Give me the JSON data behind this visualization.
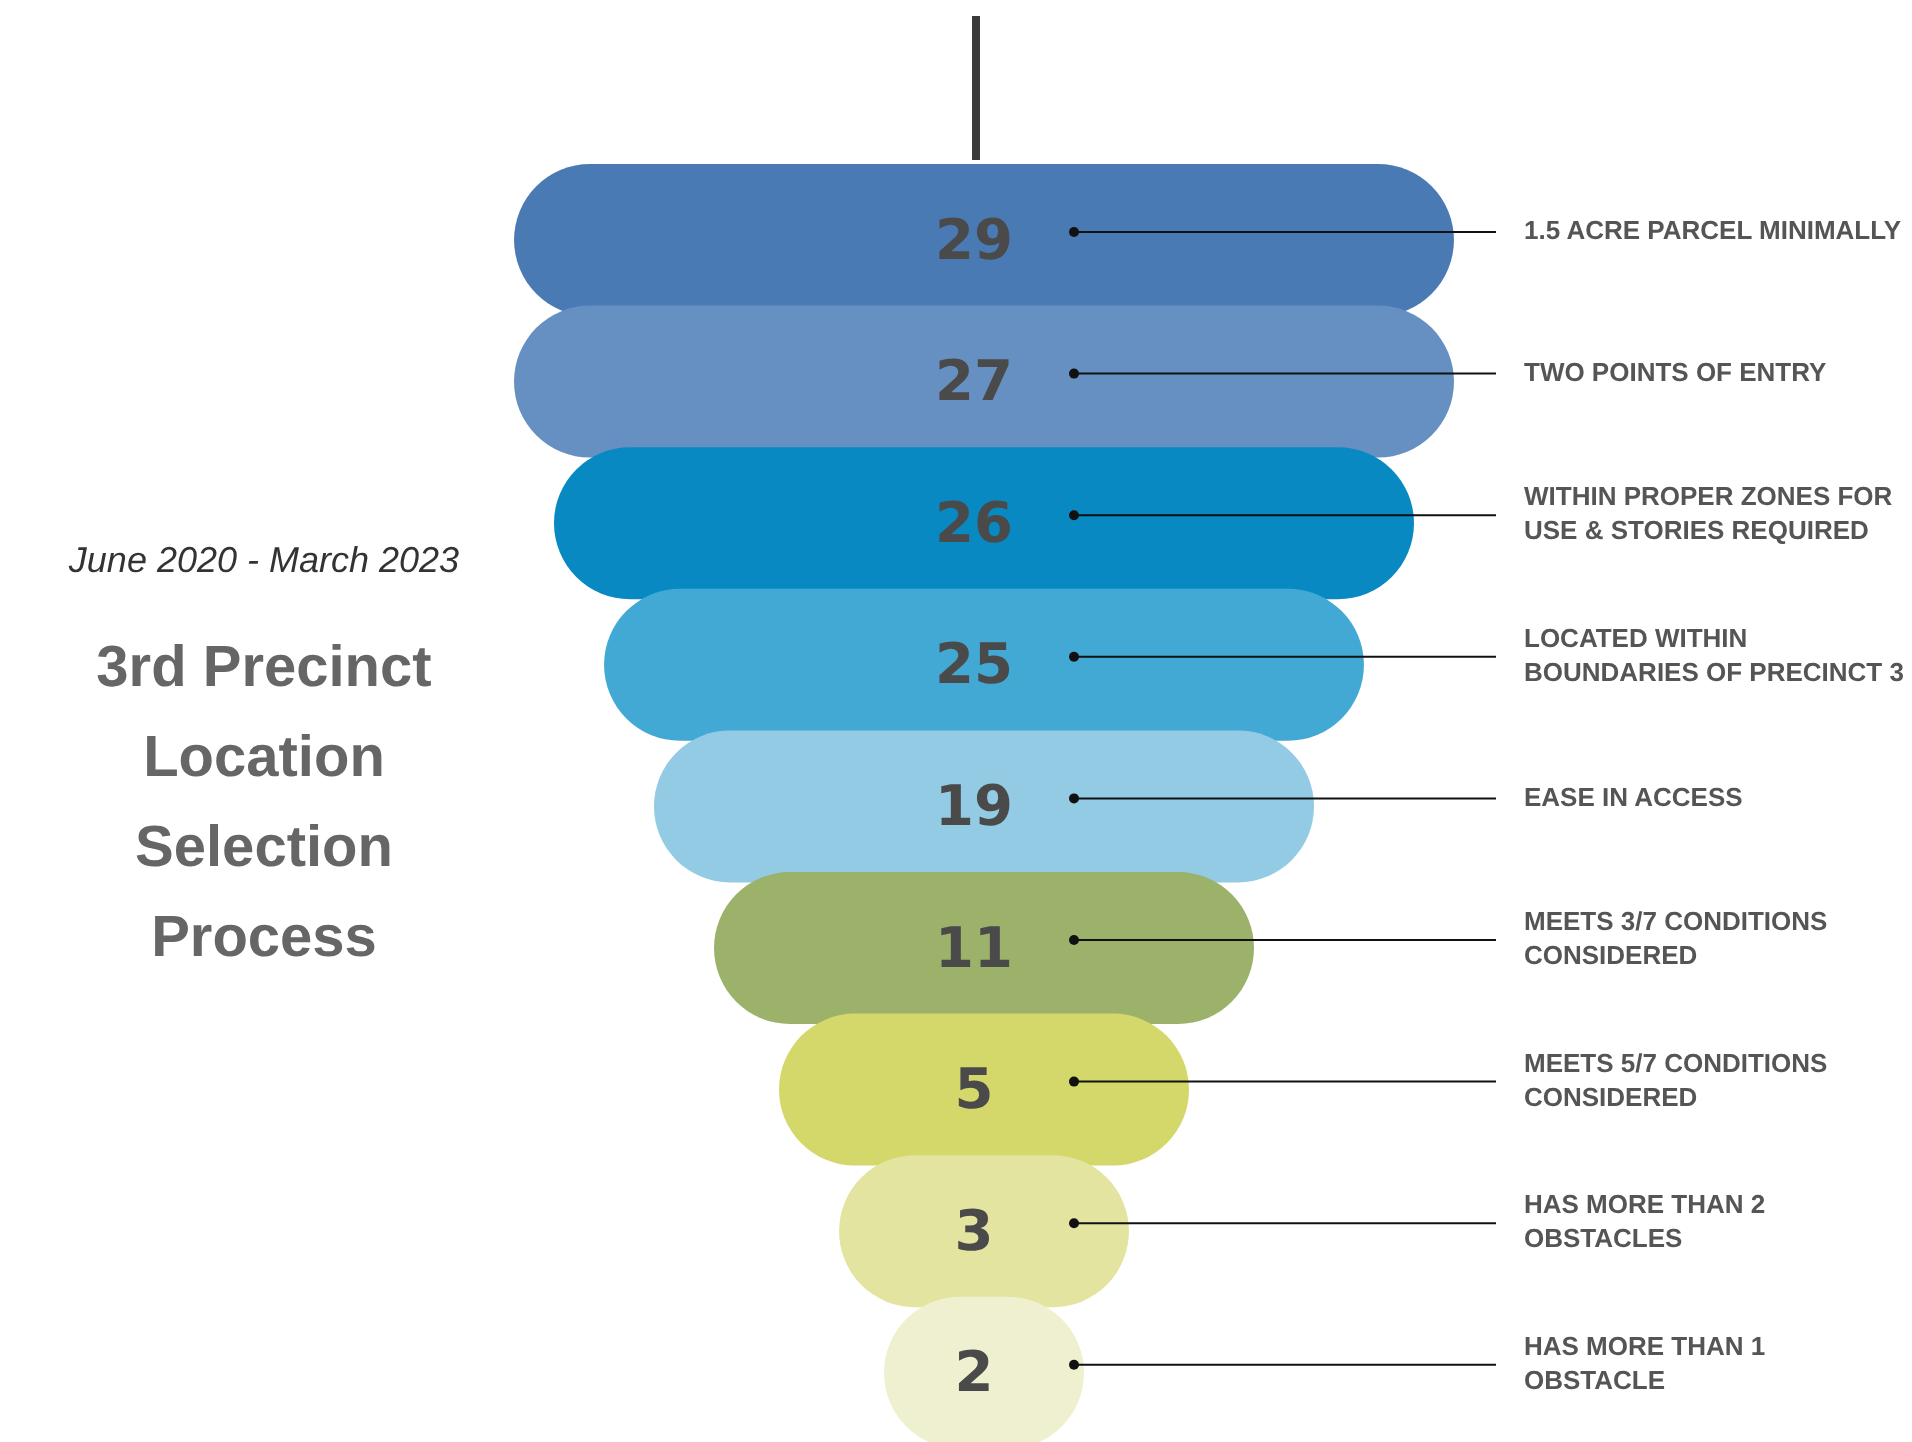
{
  "chart_data": {
    "type": "other",
    "title": "3rd Precinct Location Selection Process",
    "subtitle": "June 2020 - March 2023",
    "categories": [
      "1.5 ACRE PARCEL MINIMALLY",
      "TWO POINTS OF ENTRY",
      "WITHIN PROPER ZONES FOR USE & STORIES REQUIRED",
      "LOCATED WITHIN BOUNDARIES OF PRECINCT 3",
      "EASE IN ACCESS",
      "MEETS 3/7 CONDITIONS CONSIDERED",
      "MEETS 5/7 CONDITIONS CONSIDERED",
      "HAS MORE THAN 2 OBSTACLES",
      "HAS MORE THAN 1 OBSTACLE"
    ],
    "values": [
      29,
      27,
      26,
      25,
      19,
      11,
      5,
      3,
      2
    ],
    "colors": [
      "#4a7ab4",
      "#6790c2",
      "#0889c2",
      "#42a8d4",
      "#93cbe4",
      "#9cb26a",
      "#d4d86a",
      "#e2e4a0",
      "#eef0d0"
    ],
    "data_labels": true
  }
}
